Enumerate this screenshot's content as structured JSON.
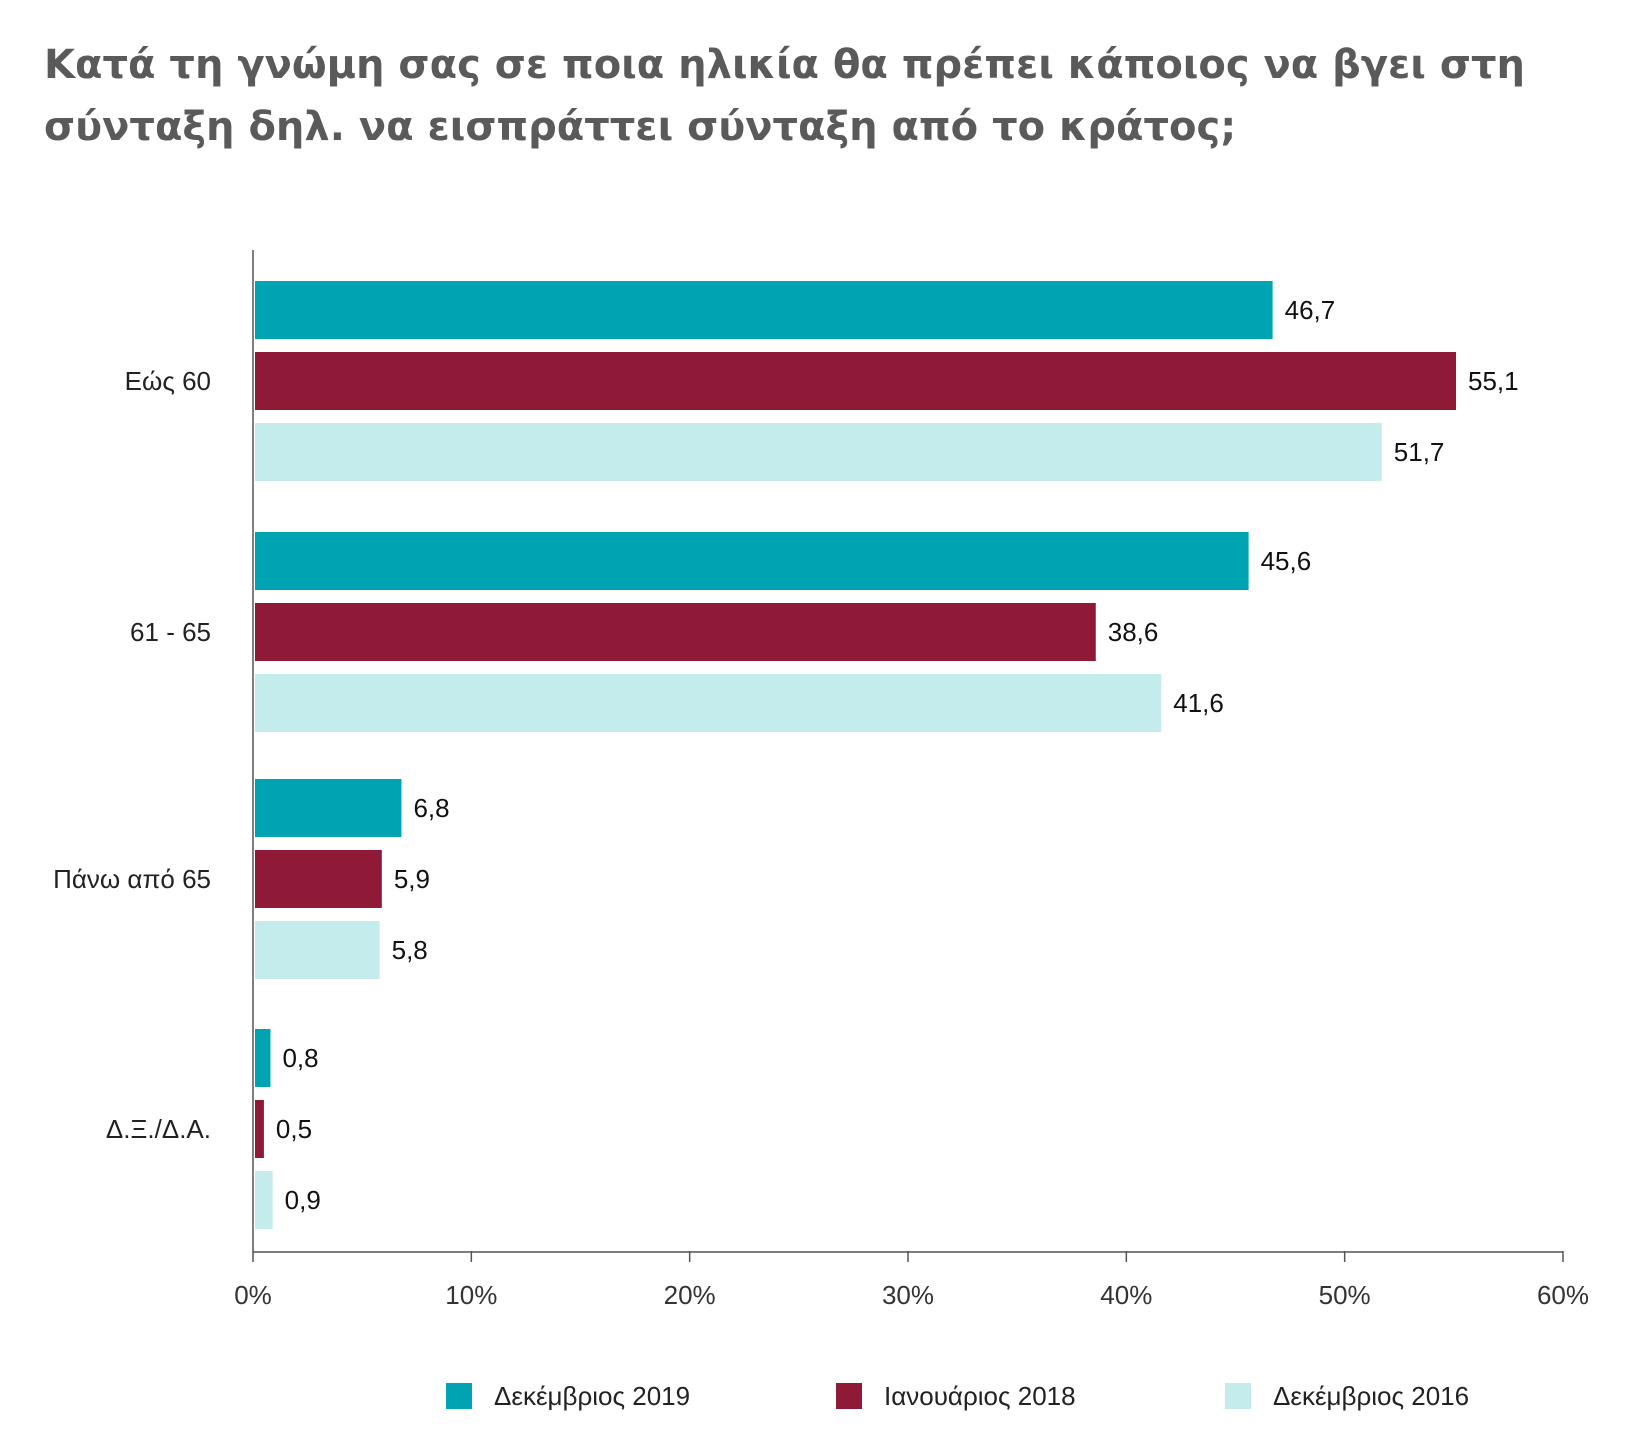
{
  "title": "Κατά τη γνώμη σας σε ποια ηλικία θα πρέπει κάποιος να βγει στη σύνταξη δηλ. να εισπράττει σύνταξη από το κράτος;",
  "chart_data": {
    "type": "bar",
    "orientation": "horizontal",
    "title": "Κατά τη γνώμη σας σε ποια ηλικία θα πρέπει κάποιος να βγει στη σύνταξη δηλ. να εισπράττει σύνταξη από το κράτος;",
    "categories": [
      "Εώς 60",
      "61 - 65",
      "Πάνω από 65",
      "Δ.Ξ./Δ.Α."
    ],
    "series": [
      {
        "name": "Δεκέμβριος 2019",
        "color": "#00a3b1",
        "values": [
          46.7,
          45.6,
          6.8,
          0.8
        ],
        "labels": [
          "46,7",
          "45,6",
          "6,8",
          "0,8"
        ]
      },
      {
        "name": "Ιανουάριος 2018",
        "color": "#8e1a38",
        "values": [
          55.1,
          38.6,
          5.9,
          0.5
        ],
        "labels": [
          "55,1",
          "38,6",
          "5,9",
          "0,5"
        ]
      },
      {
        "name": "Δεκέμβριος 2016",
        "color": "#c5ecec",
        "values": [
          51.7,
          41.6,
          5.8,
          0.9
        ],
        "labels": [
          "51,7",
          "41,6",
          "5,8",
          "0,9"
        ]
      }
    ],
    "xlim": [
      0,
      60
    ],
    "xticks": [
      0,
      10,
      20,
      30,
      40,
      50,
      60
    ],
    "xtick_labels": [
      "0%",
      "10%",
      "20%",
      "30%",
      "40%",
      "50%",
      "60%"
    ],
    "xlabel": "",
    "ylabel": "",
    "grid": false,
    "legend_position": "bottom"
  }
}
